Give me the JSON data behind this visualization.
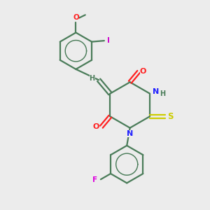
{
  "bg_color": "#ececec",
  "bond_color": "#4a7c59",
  "N_color": "#2020ff",
  "O_color": "#ff2020",
  "S_color": "#cccc00",
  "F_color": "#dd00dd",
  "I_color": "#cc00cc",
  "line_width": 1.6,
  "figsize": [
    3.0,
    3.0
  ],
  "dpi": 100,
  "xlim": [
    0,
    10
  ],
  "ylim": [
    0,
    10
  ]
}
